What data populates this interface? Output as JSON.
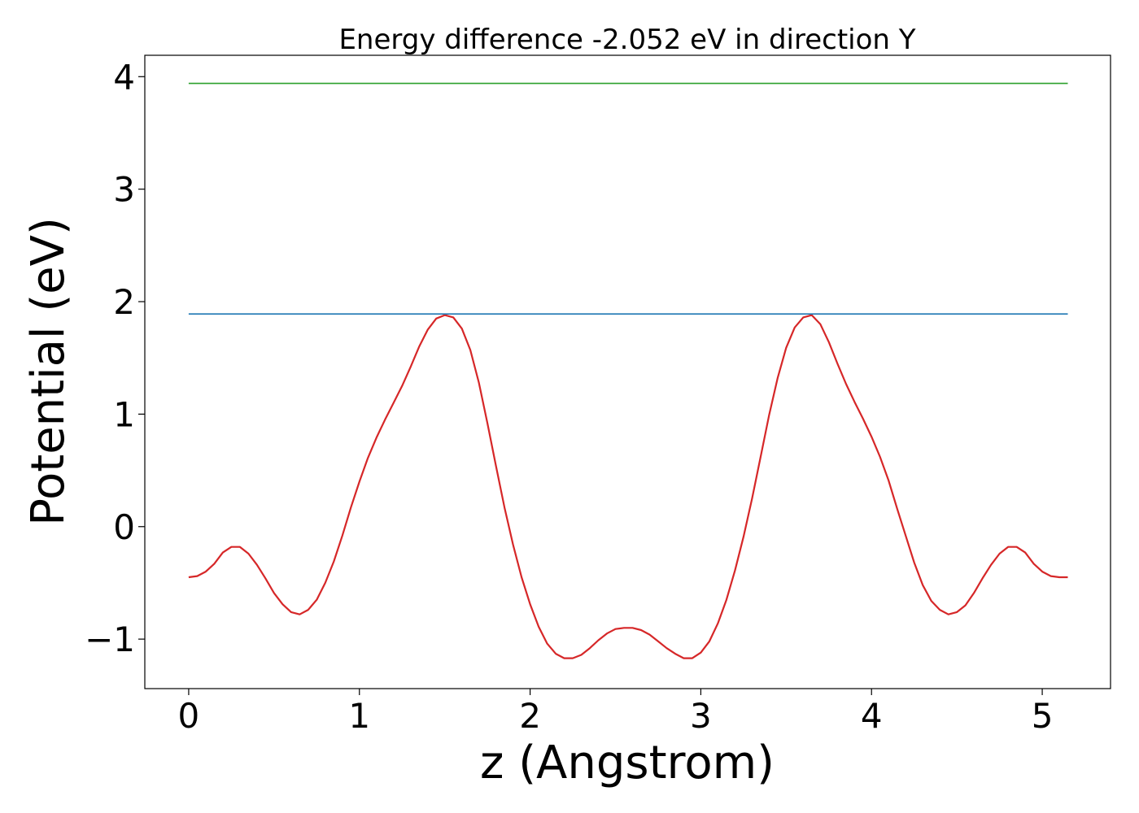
{
  "chart_data": {
    "type": "line",
    "title": "Energy difference -2.052 eV in direction Y",
    "xlabel": "z (Angstrom)",
    "ylabel": "Potential (eV)",
    "xlim": [
      -0.257,
      5.4
    ],
    "ylim": [
      -1.44,
      4.19
    ],
    "grid": false,
    "legend": "none",
    "xticks": [
      0,
      1,
      2,
      3,
      4,
      5
    ],
    "xtick_labels": [
      "0",
      "1",
      "2",
      "3",
      "4",
      "5"
    ],
    "yticks": [
      -1,
      0,
      1,
      2,
      3,
      4
    ],
    "ytick_labels": [
      "−1",
      "0",
      "1",
      "2",
      "3",
      "4"
    ],
    "series": [
      {
        "color": "#d62728",
        "x": [
          0.0,
          0.05,
          0.1,
          0.15,
          0.2,
          0.25,
          0.3,
          0.35,
          0.4,
          0.45,
          0.5,
          0.55,
          0.6,
          0.65,
          0.7,
          0.75,
          0.8,
          0.85,
          0.9,
          0.95,
          1.0,
          1.05,
          1.1,
          1.15,
          1.2,
          1.25,
          1.3,
          1.35,
          1.4,
          1.45,
          1.5,
          1.55,
          1.6,
          1.65,
          1.7,
          1.75,
          1.8,
          1.85,
          1.9,
          1.95,
          2.0,
          2.05,
          2.1,
          2.15,
          2.2,
          2.25,
          2.3,
          2.35,
          2.4,
          2.45,
          2.5,
          2.55,
          2.6,
          2.65,
          2.7,
          2.75,
          2.8,
          2.85,
          2.9,
          2.95,
          3.0,
          3.05,
          3.1,
          3.15,
          3.2,
          3.25,
          3.3,
          3.35,
          3.4,
          3.45,
          3.5,
          3.55,
          3.6,
          3.65,
          3.7,
          3.75,
          3.8,
          3.85,
          3.9,
          3.95,
          4.0,
          4.05,
          4.1,
          4.15,
          4.2,
          4.25,
          4.3,
          4.35,
          4.4,
          4.45,
          4.5,
          4.55,
          4.6,
          4.65,
          4.7,
          4.75,
          4.8,
          4.85,
          4.9,
          4.95,
          5.0,
          5.05,
          5.1,
          5.15
        ],
        "y": [
          -0.45,
          -0.44,
          -0.4,
          -0.33,
          -0.23,
          -0.18,
          -0.18,
          -0.24,
          -0.34,
          -0.46,
          -0.59,
          -0.69,
          -0.76,
          -0.78,
          -0.74,
          -0.65,
          -0.5,
          -0.31,
          -0.08,
          0.17,
          0.4,
          0.61,
          0.79,
          0.95,
          1.1,
          1.25,
          1.42,
          1.6,
          1.75,
          1.85,
          1.88,
          1.86,
          1.76,
          1.57,
          1.28,
          0.92,
          0.54,
          0.17,
          -0.16,
          -0.45,
          -0.69,
          -0.89,
          -1.04,
          -1.13,
          -1.17,
          -1.17,
          -1.14,
          -1.08,
          -1.01,
          -0.95,
          -0.91,
          -0.9,
          -0.9,
          -0.92,
          -0.96,
          -1.02,
          -1.08,
          -1.13,
          -1.17,
          -1.17,
          -1.12,
          -1.02,
          -0.86,
          -0.65,
          -0.39,
          -0.09,
          0.25,
          0.62,
          0.99,
          1.32,
          1.59,
          1.77,
          1.86,
          1.88,
          1.8,
          1.64,
          1.45,
          1.27,
          1.11,
          0.96,
          0.8,
          0.62,
          0.41,
          0.16,
          -0.08,
          -0.32,
          -0.52,
          -0.66,
          -0.74,
          -0.78,
          -0.76,
          -0.7,
          -0.59,
          -0.46,
          -0.34,
          -0.24,
          -0.18,
          -0.18,
          -0.23,
          -0.33,
          -0.4,
          -0.44,
          -0.45,
          -0.45
        ]
      },
      {
        "color": "#1f77b4",
        "x": [
          0.0,
          5.15
        ],
        "y": [
          1.89,
          1.89
        ]
      },
      {
        "color": "#2ca02c",
        "x": [
          0.0,
          5.15
        ],
        "y": [
          3.94,
          3.94
        ]
      }
    ]
  }
}
